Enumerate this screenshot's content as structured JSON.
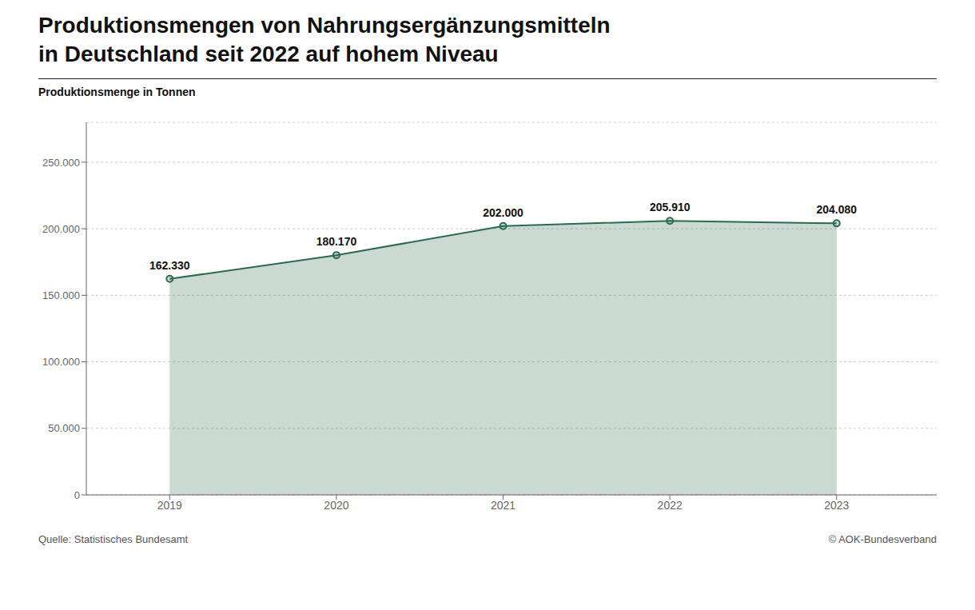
{
  "chart_data": {
    "type": "area",
    "title": "Produktionsmengen von Nahrungsergänzungsmitteln\nin Deutschland seit 2022 auf hohem Niveau",
    "y_label": "Produktionsmenge in Tonnen",
    "annotations": [
      "Quelle: Statistisches Bundesamt",
      "© AOK-Bundesverband"
    ],
    "x": [
      2019,
      2020,
      2021,
      2022,
      2023
    ],
    "values": [
      162330,
      180170,
      202000,
      205910,
      204080
    ],
    "value_labels": [
      "162.330",
      "180.170",
      "202.000",
      "205.910",
      "204.080"
    ],
    "data_labels": true,
    "color": "#2d6a4f",
    "xlim": [
      2018.5,
      2023.6
    ],
    "xticks": [
      2019,
      2020,
      2021,
      2022,
      2023
    ],
    "ylim": [
      0,
      280000
    ],
    "yticks": [
      0,
      {
        "value": 50000,
        "label": "50.000"
      },
      {
        "value": 100000,
        "label": "100.000"
      },
      {
        "value": 150000,
        "label": "150.000"
      },
      {
        "value": 200000,
        "label": "200.000"
      },
      {
        "value": 250000,
        "label": "250.000"
      }
    ],
    "grid": true
  }
}
